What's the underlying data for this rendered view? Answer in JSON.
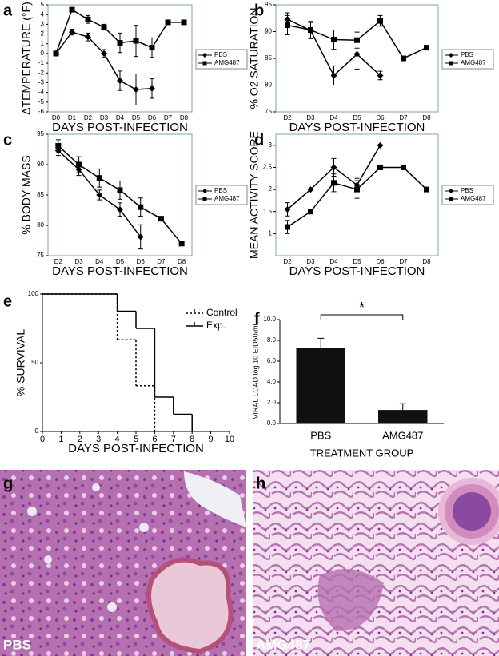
{
  "chart_data": [
    {
      "type": "line",
      "panel": "a",
      "x_label": "DAYS POST-INFECTION",
      "y_label": "ΔTEMPERATURE (°F)",
      "categories": [
        "D0",
        "D1",
        "D2",
        "D3",
        "D4",
        "D5",
        "D6",
        "D7",
        "D8"
      ],
      "ylim": [
        -6,
        5
      ],
      "yticks": [
        -6,
        -5,
        -4,
        -3,
        -2,
        -1,
        0,
        1,
        2,
        3,
        4,
        5
      ],
      "grid": false,
      "series": [
        {
          "name": "PBS",
          "color": "#000000",
          "marker": "diamond",
          "values": [
            0,
            2.2,
            1.7,
            0,
            -2.8,
            -3.7,
            -3.6,
            null,
            null
          ],
          "errors": [
            0,
            0.3,
            0.4,
            0.4,
            1.0,
            1.6,
            1.0,
            null,
            null
          ]
        },
        {
          "name": "AMG487",
          "color": "#000000",
          "marker": "square",
          "values": [
            0,
            4.5,
            3.5,
            2.7,
            1.1,
            1.3,
            0.6,
            3.2,
            3.2
          ],
          "errors": [
            0,
            0.2,
            0.4,
            0.3,
            1.0,
            1.6,
            1.0,
            0,
            0
          ]
        }
      ]
    },
    {
      "type": "line",
      "panel": "b",
      "x_label": "DAYS POST-INFECTION",
      "y_label": "% O2 SATURATION",
      "categories": [
        "D2",
        "D3",
        "D4",
        "D5",
        "D6",
        "D7",
        "D8"
      ],
      "ylim": [
        75,
        95
      ],
      "yticks": [
        75,
        80,
        85,
        90,
        95
      ],
      "grid": false,
      "series": [
        {
          "name": "PBS",
          "color": "#000000",
          "marker": "diamond",
          "values": [
            92.3,
            90.2,
            81.8,
            85.8,
            81.8,
            null,
            null
          ],
          "errors": [
            1.2,
            1.5,
            1.8,
            2.8,
            0.8,
            null,
            null
          ]
        },
        {
          "name": "AMG487",
          "color": "#000000",
          "marker": "square",
          "values": [
            91.2,
            90.3,
            88.5,
            88.4,
            92.0,
            85.0,
            87.0
          ],
          "errors": [
            1.8,
            1.6,
            1.8,
            1.5,
            1.0,
            0,
            0
          ]
        }
      ]
    },
    {
      "type": "line",
      "panel": "c",
      "x_label": "DAYS POST-INFECTION",
      "y_label": "% BODY MASS",
      "categories": [
        "D2",
        "D3",
        "D4",
        "D5",
        "D6",
        "D7",
        "D8"
      ],
      "ylim": [
        75,
        95
      ],
      "yticks": [
        75,
        80,
        85,
        90,
        95
      ],
      "grid": false,
      "series": [
        {
          "name": "PBS",
          "color": "#000000",
          "marker": "diamond",
          "values": [
            92.3,
            89.2,
            85.0,
            82.6,
            78.1,
            null,
            null
          ],
          "errors": [
            0.8,
            1.0,
            0.8,
            1.1,
            2.0,
            null,
            null
          ]
        },
        {
          "name": "AMG487",
          "color": "#000000",
          "marker": "square",
          "values": [
            93.1,
            90.0,
            87.8,
            85.8,
            83.0,
            81.1,
            77.0
          ],
          "errors": [
            1.0,
            1.3,
            1.5,
            1.5,
            1.5,
            0.3,
            0
          ]
        }
      ]
    },
    {
      "type": "line",
      "panel": "d",
      "x_label": "DAYS POST-INFECTION",
      "y_label": "MEAN ACTIVITY SCORE",
      "categories": [
        "D2",
        "D3",
        "D4",
        "D5",
        "D6",
        "D7",
        "D8"
      ],
      "ylim": [
        0.5,
        3.25
      ],
      "yticks": [
        1,
        1.5,
        2,
        2.5,
        3
      ],
      "grid": false,
      "series": [
        {
          "name": "PBS",
          "color": "#000000",
          "marker": "diamond",
          "values": [
            1.55,
            2.0,
            2.5,
            2.1,
            3.0,
            null,
            null
          ],
          "errors": [
            0.15,
            0,
            0.2,
            0.15,
            0,
            null,
            null
          ]
        },
        {
          "name": "AMG487",
          "color": "#000000",
          "marker": "square",
          "values": [
            1.15,
            1.5,
            2.15,
            2.0,
            2.5,
            2.5,
            2.0
          ],
          "errors": [
            0.15,
            0,
            0.2,
            0.2,
            0,
            0,
            0
          ]
        }
      ]
    },
    {
      "type": "step",
      "panel": "e",
      "x_label": "DAYS POST-INFECTION",
      "y_label": "% SURVIVAL",
      "xlim": [
        0,
        10
      ],
      "xticks": [
        0,
        1,
        2,
        3,
        4,
        5,
        6,
        7,
        8,
        9,
        10
      ],
      "ylim": [
        0,
        100
      ],
      "yticks": [
        0,
        50,
        100
      ],
      "series": [
        {
          "name": "Control",
          "color": "#000000",
          "dash": true,
          "x": [
            0,
            4,
            5,
            6
          ],
          "values": [
            100,
            66.7,
            33.3,
            0
          ]
        },
        {
          "name": "Exp.",
          "color": "#000000",
          "dash": false,
          "x": [
            0,
            4,
            5,
            6,
            7,
            8
          ],
          "values": [
            100,
            87.5,
            75,
            25,
            12.5,
            0
          ]
        }
      ]
    },
    {
      "type": "bar",
      "panel": "f",
      "x_label": "TREATMENT GROUP",
      "y_label": "VIRAL LOAD log 10 EID50/ml",
      "annotation": "*",
      "categories": [
        "PBS",
        "AMG487"
      ],
      "values": [
        7.3,
        1.3
      ],
      "errors": [
        0.9,
        0.6
      ],
      "color": "#111111",
      "ylim": [
        0,
        10
      ],
      "yticks": [
        {
          "value": 0,
          "label": "0.0"
        },
        {
          "value": 2,
          "label": "2.0"
        },
        {
          "value": 4,
          "label": "4.0"
        },
        {
          "value": 6,
          "label": "6.0"
        },
        {
          "value": 8,
          "label": "8.0"
        },
        {
          "value": 10,
          "label": "10.0"
        }
      ],
      "grid": false
    }
  ],
  "images": [
    {
      "panel": "g",
      "label": "PBS"
    },
    {
      "panel": "h",
      "label": "AMG487"
    }
  ]
}
